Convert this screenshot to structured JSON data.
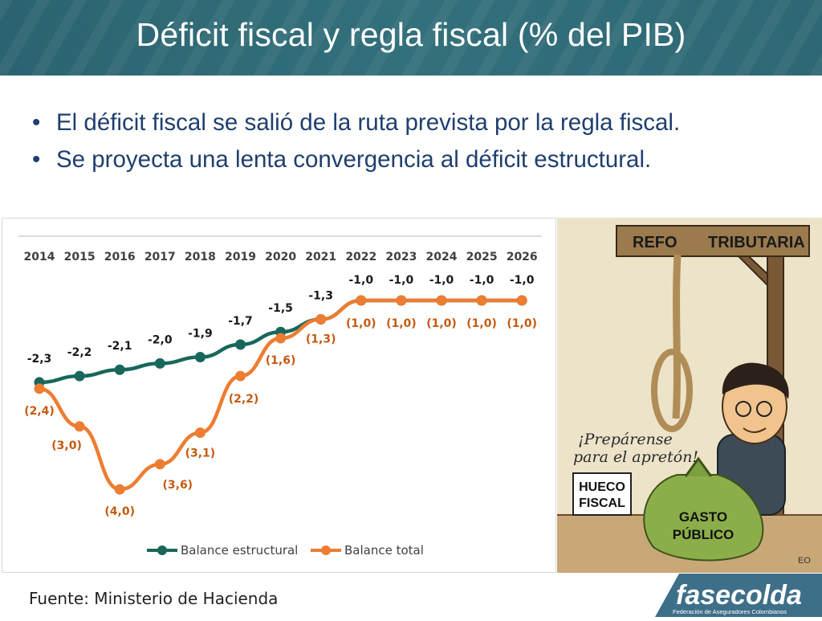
{
  "header": {
    "title": "Déficit fiscal y regla fiscal (% del PIB)"
  },
  "bullets": [
    "El déficit fiscal se salió de la ruta prevista por la regla fiscal.",
    "Se proyecta una lenta convergencia al déficit estructural."
  ],
  "colors": {
    "header_bg": "#2e6874",
    "structural": "#17675a",
    "total": "#ed7d31",
    "bullet_text": "#1f3f6e"
  },
  "chart_data": {
    "type": "line",
    "categories": [
      "2014",
      "2015",
      "2016",
      "2017",
      "2018",
      "2019",
      "2020",
      "2021",
      "2022",
      "2023",
      "2024",
      "2025",
      "2026"
    ],
    "series": [
      {
        "name": "Balance estructural",
        "color": "#17675a",
        "values": [
          -2.3,
          -2.2,
          -2.1,
          -2.0,
          -1.9,
          -1.7,
          -1.5,
          -1.3,
          -1.0,
          -1.0,
          -1.0,
          -1.0,
          -1.0
        ],
        "labels": [
          "-2,3",
          "-2,2",
          "-2,1",
          "-2,0",
          "-1,9",
          "-1,7",
          "-1,5",
          "-1,3",
          "-1,0",
          "-1,0",
          "-1,0",
          "-1,0",
          "-1,0"
        ]
      },
      {
        "name": "Balance total",
        "color": "#ed7d31",
        "values": [
          -2.4,
          -3.0,
          -4.0,
          -3.6,
          -3.1,
          -2.2,
          -1.6,
          -1.3,
          -1.0,
          -1.0,
          -1.0,
          -1.0,
          -1.0
        ],
        "labels": [
          "(2,4)",
          "(3,0)",
          "(4,0)",
          "(3,6)",
          "(3,1)",
          "(2,2)",
          "(1,6)",
          "(1,3)",
          "(1,0)",
          "(1,0)",
          "(1,0)",
          "(1,0)",
          "(1,0)"
        ]
      }
    ],
    "legend_position": "bottom",
    "grid": false
  },
  "cartoon": {
    "sign_left": "REFO",
    "sign_right": "TRIBUTARIA",
    "speech": [
      "¡Prepárense",
      "para el apretón!"
    ],
    "box": [
      "HUECO",
      "FISCAL"
    ],
    "bag": [
      "GASTO",
      "PÚBLICO"
    ],
    "signature": "EO"
  },
  "footer": {
    "source": "Fuente: Ministerio de Hacienda",
    "logo_name": "fasecolda",
    "logo_tagline": "Federación de Aseguradores Colombianos"
  }
}
